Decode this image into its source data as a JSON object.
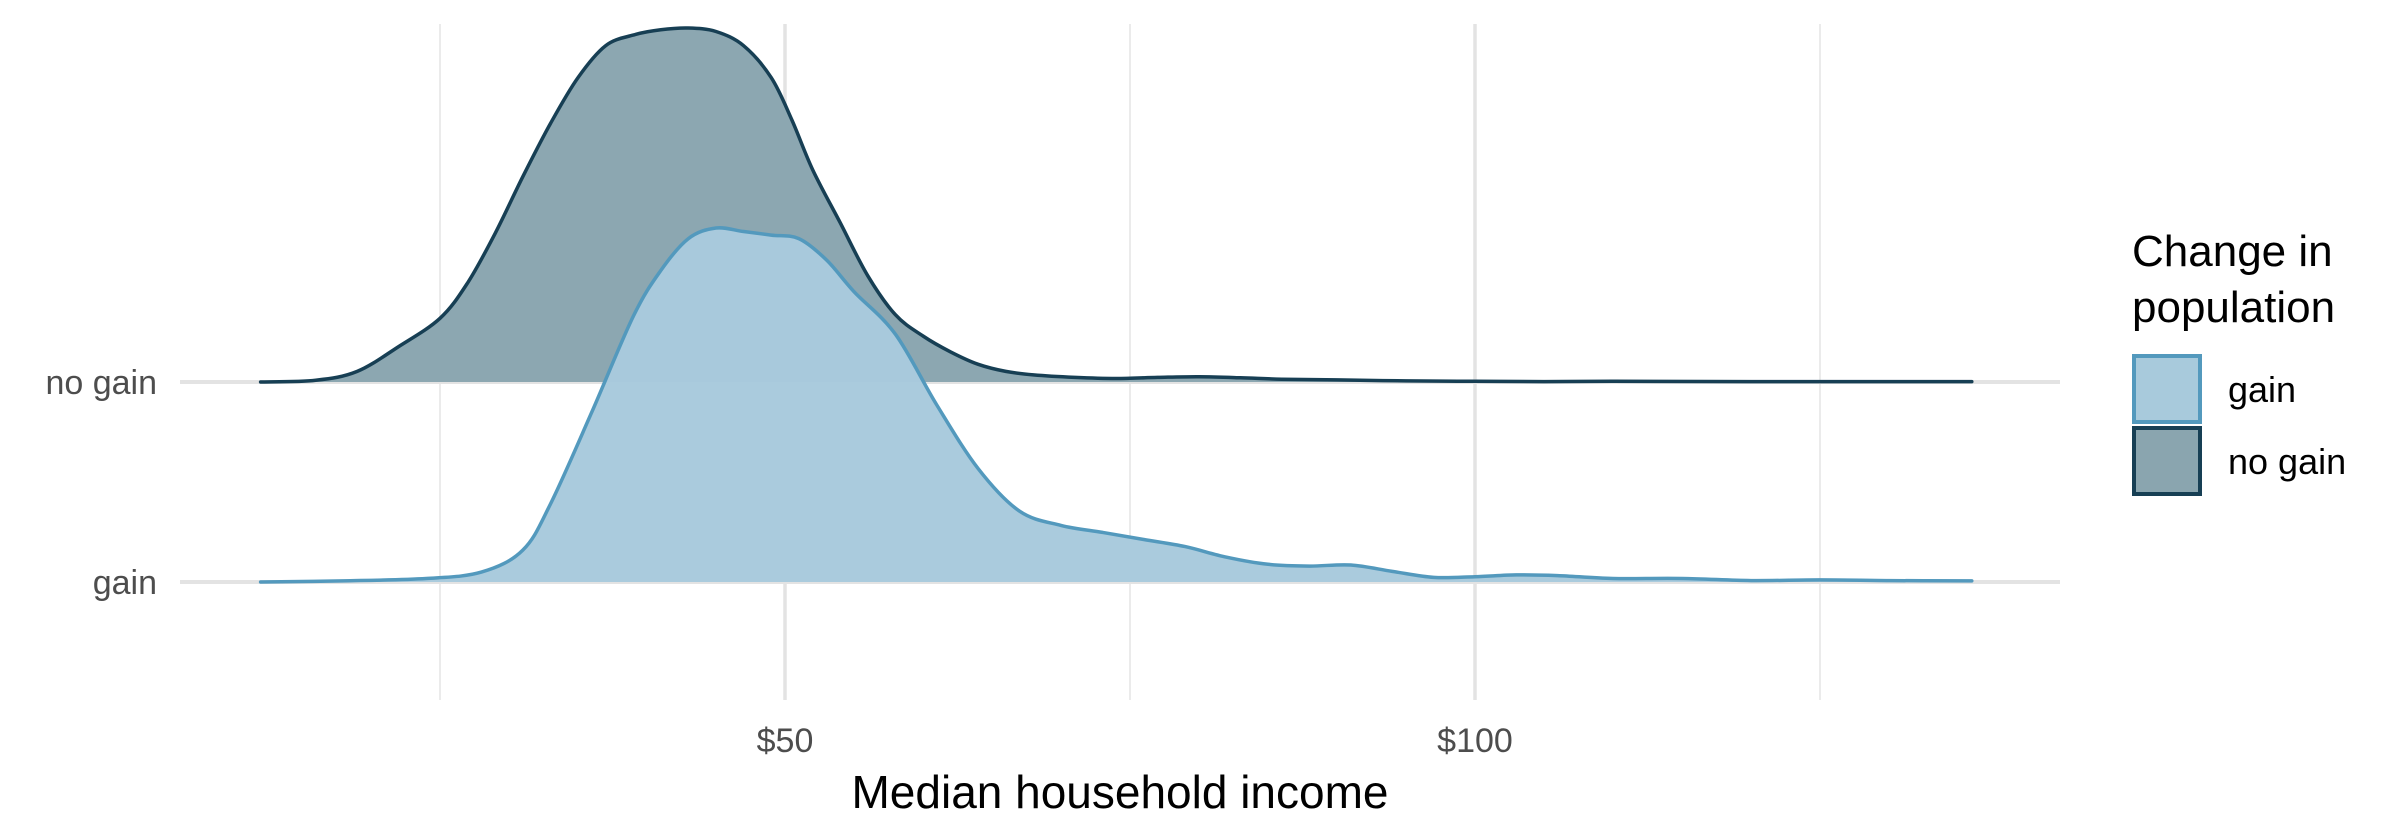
{
  "chart_data": {
    "type": "area",
    "subtype": "ridgeline-density",
    "title": "",
    "xlabel": "Median household income",
    "ylabel": "",
    "xlim": [
      12,
      138
    ],
    "x_ticks": [
      {
        "value": 50,
        "label": "$50"
      },
      {
        "value": 100,
        "label": "$100"
      }
    ],
    "x_minor_ticks": [
      25,
      75,
      125
    ],
    "categories": [
      "gain",
      "no gain"
    ],
    "grid": true,
    "legend": {
      "title_lines": [
        "Change in",
        "population"
      ],
      "placement": "right",
      "items": [
        {
          "label": "gain",
          "fill": "#a8cadc",
          "stroke": "#5399bd"
        },
        {
          "label": "no gain",
          "fill": "#8aa5af",
          "stroke": "#173f54"
        }
      ]
    },
    "series": [
      {
        "name": "gain",
        "category": "gain",
        "fill": "#a8cadc",
        "stroke": "#5399bd",
        "x": [
          12,
          18,
          24,
          28,
          31,
          33,
          36,
          39,
          41,
          43,
          45,
          47,
          49,
          51,
          53,
          55,
          58,
          61,
          64,
          67,
          70,
          73,
          76,
          79,
          82,
          85,
          88,
          91,
          94,
          97,
          100,
          103,
          106,
          110,
          115,
          120,
          125,
          130,
          136
        ],
        "density": [
          0,
          0.003,
          0.01,
          0.028,
          0.09,
          0.22,
          0.48,
          0.75,
          0.88,
          0.97,
          1.0,
          0.99,
          0.98,
          0.97,
          0.91,
          0.82,
          0.7,
          0.5,
          0.32,
          0.2,
          0.16,
          0.14,
          0.12,
          0.1,
          0.07,
          0.05,
          0.045,
          0.048,
          0.03,
          0.013,
          0.015,
          0.02,
          0.018,
          0.01,
          0.01,
          0.004,
          0.006,
          0.004,
          0.003
        ]
      },
      {
        "name": "no gain",
        "category": "no gain",
        "fill": "#8aa5af",
        "stroke": "#173f54",
        "x": [
          12,
          16,
          19,
          22,
          25,
          27,
          29,
          31,
          33,
          35,
          37,
          39,
          41,
          43,
          45,
          47,
          49,
          50.5,
          52,
          54,
          56,
          58,
          60,
          62,
          64,
          66,
          68,
          71,
          74,
          77,
          80,
          83,
          86,
          90,
          95,
          100,
          105,
          110,
          120,
          130,
          136
        ],
        "density": [
          0,
          0.005,
          0.03,
          0.1,
          0.18,
          0.28,
          0.42,
          0.58,
          0.73,
          0.86,
          0.95,
          0.98,
          0.995,
          1.0,
          0.99,
          0.95,
          0.86,
          0.74,
          0.6,
          0.45,
          0.3,
          0.19,
          0.13,
          0.085,
          0.05,
          0.03,
          0.02,
          0.013,
          0.01,
          0.013,
          0.015,
          0.012,
          0.008,
          0.006,
          0.003,
          0.002,
          0.001,
          0.002,
          0.001,
          0.001,
          0.001
        ]
      }
    ]
  }
}
